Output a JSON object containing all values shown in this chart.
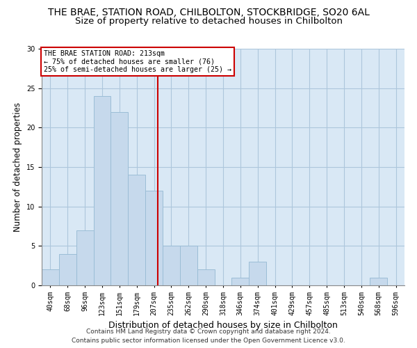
{
  "title": "THE BRAE, STATION ROAD, CHILBOLTON, STOCKBRIDGE, SO20 6AL",
  "subtitle": "Size of property relative to detached houses in Chilbolton",
  "xlabel": "Distribution of detached houses by size in Chilbolton",
  "ylabel": "Number of detached properties",
  "bins": [
    "40sqm",
    "68sqm",
    "96sqm",
    "123sqm",
    "151sqm",
    "179sqm",
    "207sqm",
    "235sqm",
    "262sqm",
    "290sqm",
    "318sqm",
    "346sqm",
    "374sqm",
    "401sqm",
    "429sqm",
    "457sqm",
    "485sqm",
    "513sqm",
    "540sqm",
    "568sqm",
    "596sqm"
  ],
  "values": [
    2,
    4,
    7,
    24,
    22,
    14,
    12,
    5,
    5,
    2,
    0,
    1,
    3,
    0,
    0,
    0,
    0,
    0,
    0,
    1,
    0
  ],
  "bar_color": "#c6d9ec",
  "bar_edge_color": "#9bbdd6",
  "grid_color": "#adc6dc",
  "background_color": "#d9e8f5",
  "property_label": "THE BRAE STATION ROAD: 213sqm",
  "annotation_line1": "← 75% of detached houses are smaller (76)",
  "annotation_line2": "25% of semi-detached houses are larger (25) →",
  "vline_color": "#cc0000",
  "vline_x_index": 6.22,
  "ylim": [
    0,
    30
  ],
  "yticks": [
    0,
    5,
    10,
    15,
    20,
    25,
    30
  ],
  "footer1": "Contains HM Land Registry data © Crown copyright and database right 2024.",
  "footer2": "Contains public sector information licensed under the Open Government Licence v3.0.",
  "title_fontsize": 10,
  "subtitle_fontsize": 9.5,
  "axis_label_fontsize": 8.5,
  "tick_fontsize": 7,
  "footer_fontsize": 6.5
}
